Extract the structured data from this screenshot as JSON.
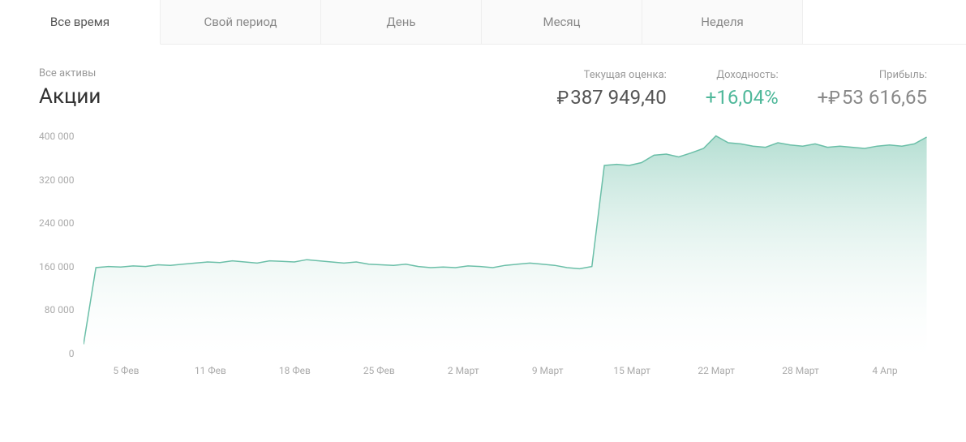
{
  "tabs": [
    {
      "label": "Все время",
      "active": true
    },
    {
      "label": "Свой период",
      "active": false
    },
    {
      "label": "День",
      "active": false
    },
    {
      "label": "Месяц",
      "active": false
    },
    {
      "label": "Неделя",
      "active": false
    }
  ],
  "breadcrumb": "Все активы",
  "asset_title": "Акции",
  "metrics": {
    "valuation": {
      "label": "Текущая оценка:",
      "currency": "₽",
      "value": "387 949,40"
    },
    "yield": {
      "label": "Доходность:",
      "value": "+16,04%"
    },
    "profit": {
      "label": "Прибыль:",
      "currency": "₽",
      "prefix": "+",
      "value": "53 616,65"
    }
  },
  "chart": {
    "type": "area",
    "ylim": [
      0,
      400000
    ],
    "ytick_step": 80000,
    "y_ticks": [
      "400 000",
      "320 000",
      "240 000",
      "160 000",
      "80 000",
      "0"
    ],
    "x_ticks": [
      "5 Фев",
      "11 Фев",
      "18 Фев",
      "25 Фев",
      "2 Март",
      "9 Март",
      "15 Март",
      "22 Март",
      "28 Март",
      "4 Апр"
    ],
    "line_color": "#6bbfa8",
    "fill_top_color": "#a8d9cb",
    "fill_bottom_color": "#ffffff",
    "line_width": 1.5,
    "background_color": "#ffffff",
    "values": [
      25000,
      160000,
      162000,
      161000,
      163000,
      162000,
      165000,
      164000,
      166000,
      168000,
      170000,
      169000,
      172000,
      170000,
      168000,
      172000,
      171000,
      170000,
      174000,
      172000,
      170000,
      168000,
      170000,
      166000,
      165000,
      164000,
      166000,
      162000,
      160000,
      161000,
      160000,
      163000,
      162000,
      160000,
      164000,
      166000,
      168000,
      166000,
      164000,
      160000,
      158000,
      162000,
      340000,
      342000,
      340000,
      345000,
      358000,
      360000,
      355000,
      362000,
      370000,
      392000,
      380000,
      378000,
      374000,
      372000,
      380000,
      376000,
      374000,
      378000,
      372000,
      374000,
      372000,
      370000,
      374000,
      376000,
      374000,
      378000,
      390000
    ]
  }
}
